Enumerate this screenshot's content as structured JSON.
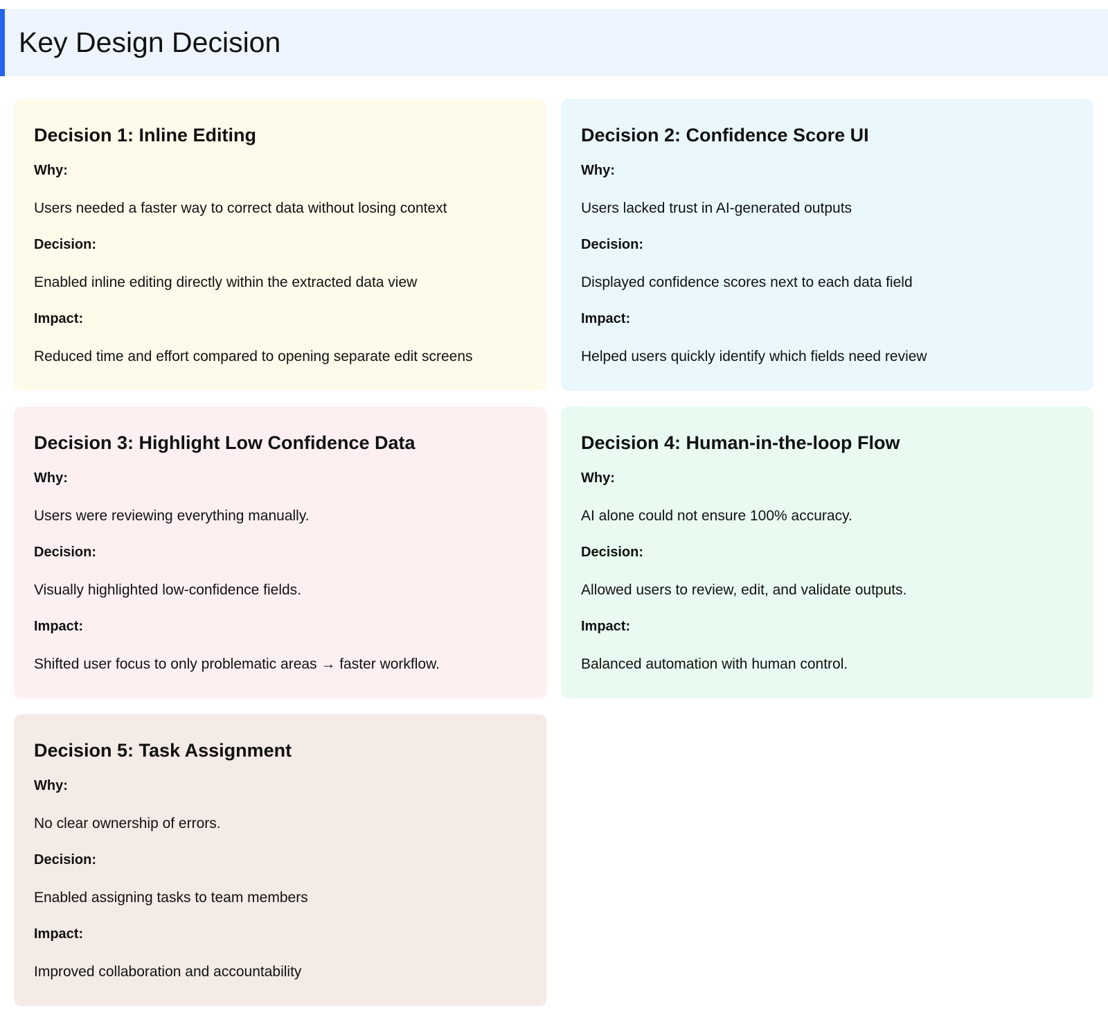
{
  "header": {
    "title": "Key Design Decision"
  },
  "cards": [
    {
      "title": "Decision 1: Inline Editing",
      "items": [
        {
          "label": "Why:",
          "text": "Users needed a faster way to correct data without losing context"
        },
        {
          "label": "Decision:",
          "text": "Enabled inline editing directly within the extracted data view"
        },
        {
          "label": "Impact:",
          "text": "Reduced time and effort compared to opening separate edit screens"
        }
      ]
    },
    {
      "title": "Decision 2: Confidence Score UI",
      "items": [
        {
          "label": "Why:",
          "text": "Users lacked trust in AI-generated outputs"
        },
        {
          "label": "Decision:",
          "text": "Displayed confidence scores next to each data field"
        },
        {
          "label": "Impact:",
          "text": "Helped users quickly identify which fields need review"
        }
      ]
    },
    {
      "title": "Decision 3: Highlight Low Confidence Data",
      "items": [
        {
          "label": "Why:",
          "text": "Users were reviewing everything manually."
        },
        {
          "label": "Decision:",
          "text": "Visually highlighted low-confidence fields."
        },
        {
          "label": "Impact:",
          "text": "Shifted user focus to only problematic areas → faster workflow."
        }
      ]
    },
    {
      "title": "Decision 4: Human-in-the-loop Flow",
      "items": [
        {
          "label": "Why:",
          "text": "AI alone could not ensure 100% accuracy."
        },
        {
          "label": "Decision:",
          "text": "Allowed users to review, edit, and validate outputs."
        },
        {
          "label": "Impact:",
          "text": "Balanced automation with human control."
        }
      ]
    },
    {
      "title": "Decision 5: Task Assignment",
      "items": [
        {
          "label": "Why:",
          "text": "No clear ownership of errors."
        },
        {
          "label": "Decision:",
          "text": "Enabled assigning tasks to team members"
        },
        {
          "label": "Impact:",
          "text": "Improved collaboration and accountability"
        }
      ]
    }
  ]
}
